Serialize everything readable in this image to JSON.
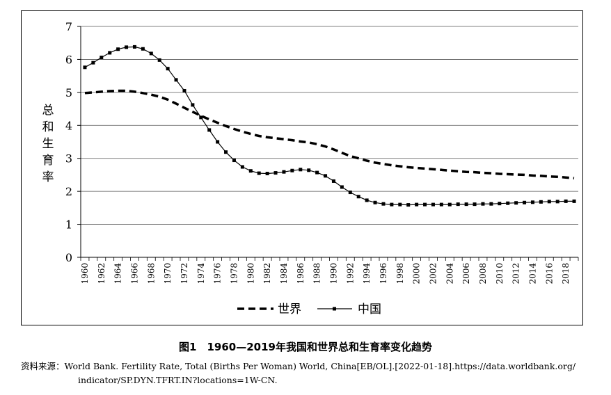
{
  "chart_data": {
    "type": "line",
    "title": "",
    "xlabel": "",
    "ylabel": "总和生育率",
    "ylim": [
      0,
      7
    ],
    "yticks": [
      0,
      1,
      2,
      3,
      4,
      5,
      6,
      7
    ],
    "x": [
      1960,
      1961,
      1962,
      1963,
      1964,
      1965,
      1966,
      1967,
      1968,
      1969,
      1970,
      1971,
      1972,
      1973,
      1974,
      1975,
      1976,
      1977,
      1978,
      1979,
      1980,
      1981,
      1982,
      1983,
      1984,
      1985,
      1986,
      1987,
      1988,
      1989,
      1990,
      1991,
      1992,
      1993,
      1994,
      1995,
      1996,
      1997,
      1998,
      1999,
      2000,
      2001,
      2002,
      2003,
      2004,
      2005,
      2006,
      2007,
      2008,
      2009,
      2010,
      2011,
      2012,
      2013,
      2014,
      2015,
      2016,
      2017,
      2018,
      2019
    ],
    "xtick_labels": [
      "1960",
      "1962",
      "1964",
      "1966",
      "1968",
      "1970",
      "1972",
      "1974",
      "1976",
      "1978",
      "1980",
      "1982",
      "1984",
      "1986",
      "1988",
      "1990",
      "1992",
      "1994",
      "1996",
      "1998",
      "2000",
      "2002",
      "2004",
      "2006",
      "2008",
      "2010",
      "2012",
      "2014",
      "2016",
      "2018"
    ],
    "grid": true,
    "legend_position": "bottom-center",
    "series": [
      {
        "name": "世界",
        "style": "dashed",
        "color": "#000000",
        "values": [
          4.98,
          5.0,
          5.02,
          5.04,
          5.05,
          5.05,
          5.02,
          4.98,
          4.93,
          4.87,
          4.78,
          4.66,
          4.53,
          4.41,
          4.29,
          4.18,
          4.08,
          3.98,
          3.89,
          3.81,
          3.74,
          3.68,
          3.64,
          3.61,
          3.58,
          3.55,
          3.51,
          3.48,
          3.43,
          3.36,
          3.27,
          3.17,
          3.07,
          3.0,
          2.93,
          2.87,
          2.83,
          2.79,
          2.76,
          2.73,
          2.71,
          2.69,
          2.67,
          2.65,
          2.63,
          2.61,
          2.59,
          2.58,
          2.56,
          2.55,
          2.53,
          2.52,
          2.51,
          2.5,
          2.48,
          2.47,
          2.45,
          2.44,
          2.42,
          2.4
        ]
      },
      {
        "name": "中国",
        "style": "solid-marker",
        "color": "#000000",
        "values": [
          5.76,
          5.9,
          6.06,
          6.2,
          6.31,
          6.37,
          6.38,
          6.32,
          6.18,
          5.98,
          5.72,
          5.38,
          5.05,
          4.62,
          4.24,
          3.86,
          3.5,
          3.19,
          2.94,
          2.74,
          2.62,
          2.55,
          2.54,
          2.56,
          2.59,
          2.63,
          2.66,
          2.64,
          2.57,
          2.47,
          2.31,
          2.13,
          1.97,
          1.84,
          1.73,
          1.66,
          1.62,
          1.6,
          1.6,
          1.59,
          1.6,
          1.6,
          1.6,
          1.6,
          1.6,
          1.61,
          1.61,
          1.61,
          1.62,
          1.62,
          1.63,
          1.64,
          1.65,
          1.66,
          1.67,
          1.68,
          1.69,
          1.69,
          1.7,
          1.7
        ]
      }
    ]
  },
  "caption": "图1　1960—2019年我国和世界总和生育率变化趋势",
  "source": {
    "label": "资料来源：",
    "line1": "World Bank. Fertility Rate, Total (Births Per Woman) World, China[EB/OL].[2022-01-18].https://data.worldbank.org/",
    "line2": "indicator/SP.DYN.TFRT.IN?locations=1W-CN."
  }
}
